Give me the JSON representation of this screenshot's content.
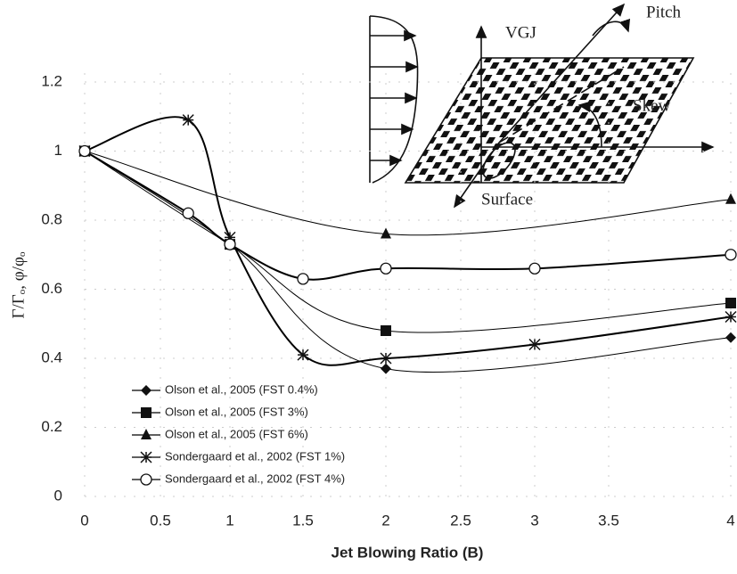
{
  "chart_data": {
    "type": "line",
    "xlabel": "Jet Blowing Ratio (B)",
    "ylabel": "Γ/Γₒ, φ/φₒ",
    "xlim": [
      0,
      4
    ],
    "ylim": [
      0,
      1.2
    ],
    "xticks": [
      0,
      0.5,
      1,
      1.5,
      2,
      2.5,
      3,
      3.5,
      4
    ],
    "yticks": [
      0,
      0.2,
      0.4,
      0.6,
      0.8,
      1,
      1.2
    ],
    "grid": true,
    "legend": "lower left",
    "series": [
      {
        "name": "Olson et al., 2005 (FST 0.4%)",
        "marker": "diamond",
        "color": "#000000",
        "x": [
          0,
          1,
          2,
          4
        ],
        "values": [
          1,
          0.73,
          0.37,
          0.46
        ]
      },
      {
        "name": "Olson et al., 2005 (FST 3%)",
        "marker": "square",
        "color": "#000000",
        "x": [
          0,
          1,
          2,
          4
        ],
        "values": [
          1,
          0.73,
          0.48,
          0.56
        ]
      },
      {
        "name": "Olson et al., 2005 (FST 6%)",
        "marker": "triangle",
        "color": "#000000",
        "x": [
          0,
          2,
          4
        ],
        "values": [
          1,
          0.76,
          0.86
        ]
      },
      {
        "name": "Sondergaard et al., 2002 (FST 1%)",
        "marker": "star",
        "color": "#000000",
        "x": [
          0,
          0.7,
          1,
          1.5,
          2,
          3,
          4
        ],
        "values": [
          1,
          1.09,
          0.75,
          0.41,
          0.4,
          0.44,
          0.52
        ]
      },
      {
        "name": "Sondergaard et al., 2002 (FST 4%)",
        "marker": "circle",
        "color": "#000000",
        "x": [
          0,
          0.7,
          1,
          1.5,
          2,
          3,
          4
        ],
        "values": [
          1,
          0.82,
          0.73,
          0.63,
          0.66,
          0.66,
          0.7
        ]
      }
    ],
    "annotations": [
      "Pitch",
      "VGJ",
      "Skew",
      "Surface"
    ]
  }
}
